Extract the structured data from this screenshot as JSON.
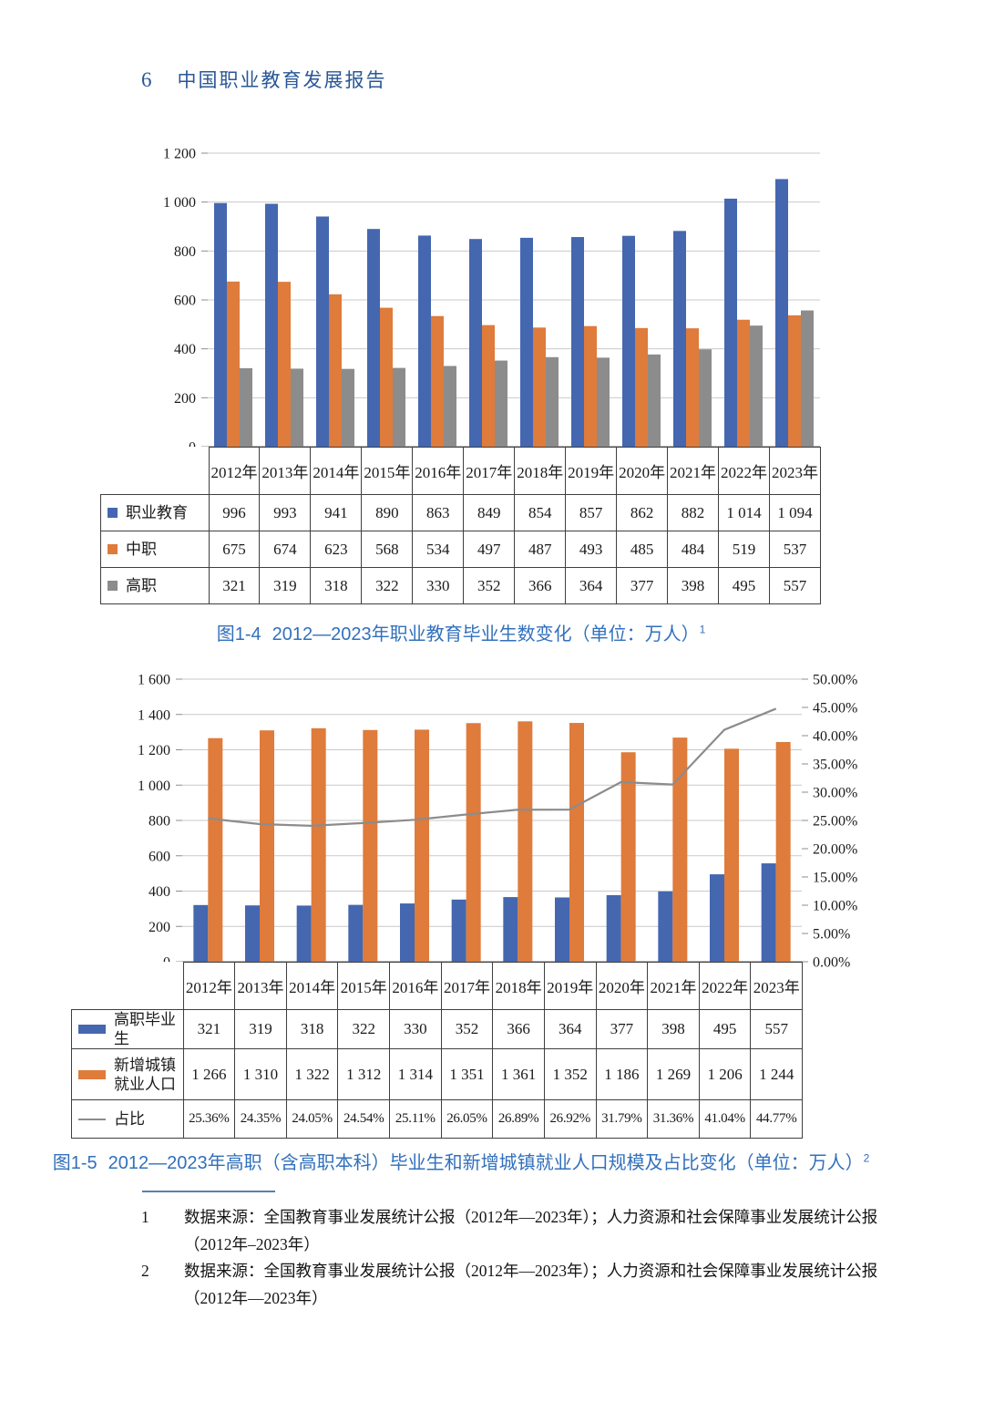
{
  "page_header": {
    "number": "6",
    "title": "中国职业教育发展报告"
  },
  "chart_data": [
    {
      "type": "bar",
      "title": "图1-4 2012—2023年职业教育毕业生数变化（单位：万人）",
      "categories": [
        "2012年",
        "2013年",
        "2014年",
        "2015年",
        "2016年",
        "2017年",
        "2018年",
        "2019年",
        "2020年",
        "2021年",
        "2022年",
        "2023年"
      ],
      "series": [
        {
          "name": "职业教育",
          "color": "#4467B0",
          "values": [
            996,
            993,
            941,
            890,
            863,
            849,
            854,
            857,
            862,
            882,
            1014,
            1094
          ]
        },
        {
          "name": "中职",
          "color": "#DF7B3B",
          "values": [
            675,
            674,
            623,
            568,
            534,
            497,
            487,
            493,
            485,
            484,
            519,
            537
          ]
        },
        {
          "name": "高职",
          "color": "#8C8C8C",
          "values": [
            321,
            319,
            318,
            322,
            330,
            352,
            366,
            364,
            377,
            398,
            495,
            557
          ]
        }
      ],
      "ylim": [
        0,
        1200
      ],
      "ytick_step": 200,
      "y_axis_labels": [
        "0",
        "200",
        "400",
        "600",
        "800",
        "1 000",
        "1 200"
      ],
      "grid": true,
      "legend_position": "data-table-left"
    },
    {
      "type": "combo-bar-line",
      "title": "图1-5 2012—2023年高职（含高职本科）毕业生和新增城镇就业人口规模及占比变化（单位：万人）",
      "categories": [
        "2012年",
        "2013年",
        "2014年",
        "2015年",
        "2016年",
        "2017年",
        "2018年",
        "2019年",
        "2020年",
        "2021年",
        "2022年",
        "2023年"
      ],
      "series": [
        {
          "name": "高职毕业生",
          "type": "bar",
          "color": "#4467B0",
          "values": [
            321,
            319,
            318,
            322,
            330,
            352,
            366,
            364,
            377,
            398,
            495,
            557
          ]
        },
        {
          "name": "新增城镇就业人口",
          "type": "bar",
          "color": "#DF7B3B",
          "values": [
            1266,
            1310,
            1322,
            1312,
            1314,
            1351,
            1361,
            1352,
            1186,
            1269,
            1206,
            1244
          ]
        },
        {
          "name": "占比",
          "type": "line",
          "axis": "right",
          "color": "#8C8C8C",
          "values_percent": [
            25.36,
            24.35,
            24.05,
            24.54,
            25.11,
            26.05,
            26.89,
            26.92,
            31.79,
            31.36,
            41.04,
            44.77
          ]
        }
      ],
      "ylim_left": [
        0,
        1600
      ],
      "ylim_right_percent": [
        0,
        50
      ],
      "y_left_labels": [
        "0",
        "200",
        "400",
        "600",
        "800",
        "1 000",
        "1 200",
        "1 400",
        "1 600"
      ],
      "y_right_labels": [
        "0.00%",
        "5.00%",
        "10.00%",
        "15.00%",
        "20.00%",
        "25.00%",
        "30.00%",
        "35.00%",
        "40.00%",
        "45.00%",
        "50.00%"
      ],
      "grid": true,
      "legend_position": "data-table-left"
    }
  ],
  "figure1": {
    "caption_prefix": "图1-4",
    "caption_text": "2012—2023年职业教育毕业生数变化（单位：万人）",
    "caption_sup": "1",
    "table": {
      "col_headers": [
        "2012年",
        "2013年",
        "2014年",
        "2015年",
        "2016年",
        "2017年",
        "2018年",
        "2019年",
        "2020年",
        "2021年",
        "2022年",
        "2023年"
      ],
      "rows": [
        {
          "label": "职业教育",
          "marker": "square",
          "color": "#4467B0",
          "cells": [
            "996",
            "993",
            "941",
            "890",
            "863",
            "849",
            "854",
            "857",
            "862",
            "882",
            "1 014",
            "1 094"
          ]
        },
        {
          "label": "中职",
          "marker": "square",
          "color": "#DF7B3B",
          "cells": [
            "675",
            "674",
            "623",
            "568",
            "534",
            "497",
            "487",
            "493",
            "485",
            "484",
            "519",
            "537"
          ]
        },
        {
          "label": "高职",
          "marker": "square",
          "color": "#8C8C8C",
          "cells": [
            "321",
            "319",
            "318",
            "322",
            "330",
            "352",
            "366",
            "364",
            "377",
            "398",
            "495",
            "557"
          ]
        }
      ]
    }
  },
  "figure2": {
    "caption_prefix": "图1-5",
    "caption_text": "2012—2023年高职（含高职本科）毕业生和新增城镇就业人口规模及占比变化（单位：万人）",
    "caption_sup": "2",
    "table": {
      "col_headers": [
        "2012年",
        "2013年",
        "2014年",
        "2015年",
        "2016年",
        "2017年",
        "2018年",
        "2019年",
        "2020年",
        "2021年",
        "2022年",
        "2023年"
      ],
      "rows": [
        {
          "label": "高职毕业生",
          "marker": "bar",
          "color": "#4467B0",
          "cells": [
            "321",
            "319",
            "318",
            "322",
            "330",
            "352",
            "366",
            "364",
            "377",
            "398",
            "495",
            "557"
          ]
        },
        {
          "label": "新增城镇就业人口",
          "marker": "bar",
          "color": "#DF7B3B",
          "cells": [
            "1 266",
            "1 310",
            "1 322",
            "1 312",
            "1 314",
            "1 351",
            "1 361",
            "1 352",
            "1 186",
            "1 269",
            "1 206",
            "1 244"
          ]
        },
        {
          "label": "占比",
          "marker": "line",
          "color": "#8C8C8C",
          "cells": [
            "25.36%",
            "24.35%",
            "24.05%",
            "24.54%",
            "25.11%",
            "26.05%",
            "26.89%",
            "26.92%",
            "31.79%",
            "31.36%",
            "41.04%",
            "44.77%"
          ]
        }
      ]
    }
  },
  "footnotes": [
    {
      "num": "1",
      "text": "数据来源：全国教育事业发展统计公报（2012年—2023年）；人力资源和社会保障事业发展统计公报（2012年–2023年）"
    },
    {
      "num": "2",
      "text": "数据来源：全国教育事业发展统计公报（2012年—2023年）；人力资源和社会保障事业发展统计公报（2012年—2023年）"
    }
  ]
}
